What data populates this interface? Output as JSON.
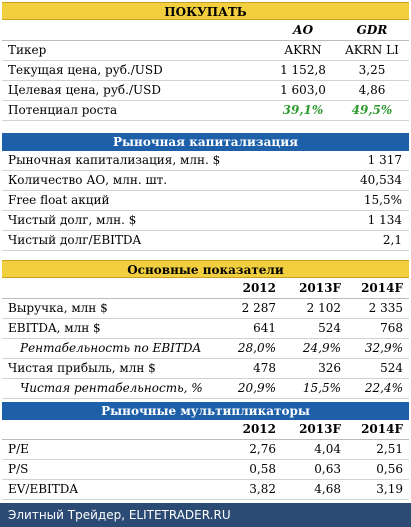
{
  "top_bar": "ПОКУПАТЬ",
  "rec_header": {
    "ao": "АО",
    "gdr": "GDR"
  },
  "rec_rows": [
    {
      "label": "Тикер",
      "ao": "AKRN",
      "gdr": "AKRN LI"
    },
    {
      "label": "Текущая цена, руб./USD",
      "ao": "1 152,8",
      "gdr": "3,25"
    },
    {
      "label": "Целевая цена, руб./USD",
      "ao": "1 603,0",
      "gdr": "4,86"
    },
    {
      "label": "Потенциал роста",
      "ao": "39,1%",
      "gdr": "49,5%"
    }
  ],
  "cap_title": "Рыночная капитализация",
  "cap_rows": [
    {
      "label": "Рыночная капитализация, млн. $",
      "value": "1 317"
    },
    {
      "label": "Количество АО, млн. шт.",
      "value": "40,534"
    },
    {
      "label": "Free float акций",
      "value": "15,5%"
    },
    {
      "label": "Чистый долг, млн. $",
      "value": "1 134"
    },
    {
      "label": "Чистый долг/EBITDA",
      "value": "2,1"
    }
  ],
  "main_title": "Основные показатели",
  "years": [
    "2012",
    "2013F",
    "2014F"
  ],
  "main_rows": [
    {
      "label": "Выручка, млн $",
      "v": [
        "2 287",
        "2 102",
        "2 335"
      ]
    },
    {
      "label": "EBITDA, млн $",
      "v": [
        "641",
        "524",
        "768"
      ]
    },
    {
      "label": "Рентабельность по EBITDA",
      "v": [
        "28,0%",
        "24,9%",
        "32,9%"
      ]
    },
    {
      "label": "Чистая прибыль, млн $",
      "v": [
        "478",
        "326",
        "524"
      ]
    },
    {
      "label": "Чистая рентабельность, %",
      "v": [
        "20,9%",
        "15,5%",
        "22,4%"
      ]
    }
  ],
  "mult_title": "Рыночные мультипликаторы",
  "mult_rows": [
    {
      "label": "P/E",
      "v": [
        "2,76",
        "4,04",
        "2,51"
      ]
    },
    {
      "label": "P/S",
      "v": [
        "0,58",
        "0,63",
        "0,56"
      ]
    },
    {
      "label": "EV/EBITDA",
      "v": [
        "3,82",
        "4,68",
        "3,19"
      ]
    }
  ],
  "footer": "Элитный Трейдер, ELITETRADER.RU"
}
